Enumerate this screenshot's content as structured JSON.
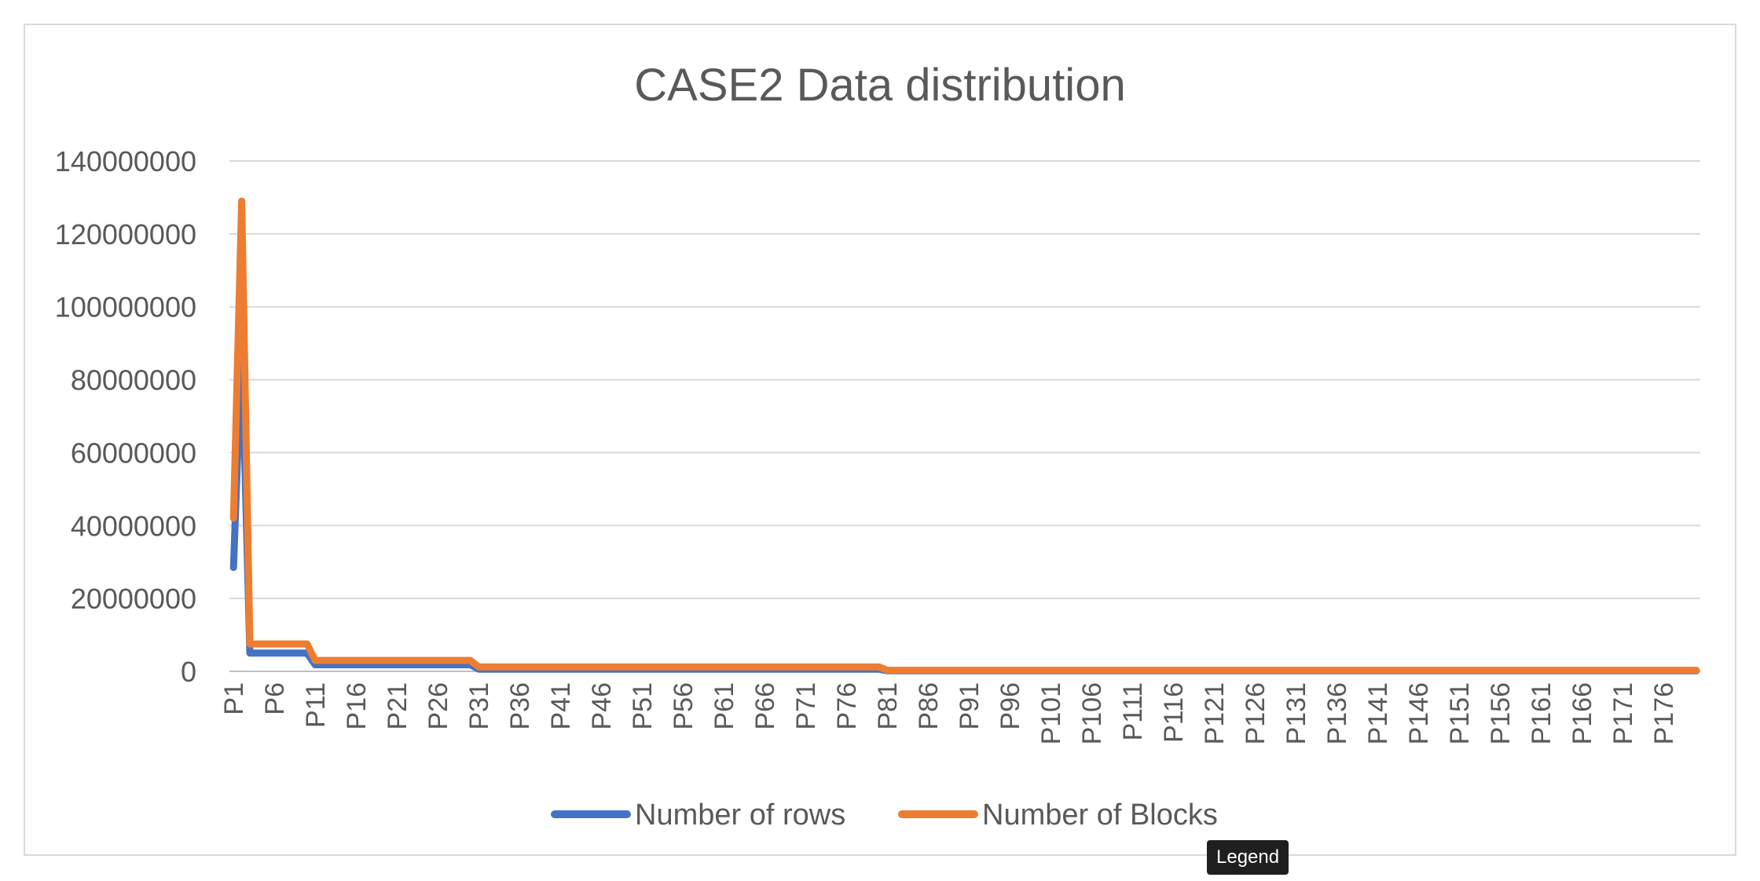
{
  "chart_data": {
    "type": "line",
    "title": "CASE2 Data distribution",
    "xlabel": "",
    "ylabel": "",
    "ylim": [
      0,
      140000000
    ],
    "y_ticks": [
      0,
      20000000,
      40000000,
      60000000,
      80000000,
      100000000,
      120000000,
      140000000
    ],
    "x_count": 180,
    "x_prefix": "P",
    "x_tick_labels": [
      "P1",
      "P6",
      "P11",
      "P16",
      "P21",
      "P26",
      "P31",
      "P36",
      "P41",
      "P46",
      "P51",
      "P56",
      "P61",
      "P66",
      "P71",
      "P76",
      "P81",
      "P86",
      "P91",
      "P96",
      "P101",
      "P106",
      "P111",
      "P116",
      "P121",
      "P126",
      "P131",
      "P136",
      "P141",
      "P146",
      "P151",
      "P156",
      "P161",
      "P166",
      "P171",
      "P176"
    ],
    "grid": true,
    "legend_position": "bottom",
    "series": [
      {
        "name": "Number of rows",
        "color": "#4472C4",
        "segments": [
          {
            "from": 1,
            "to": 1,
            "value": 28500000
          },
          {
            "from": 2,
            "to": 2,
            "value": 90000000
          },
          {
            "from": 3,
            "to": 10,
            "value": 5000000
          },
          {
            "from": 11,
            "to": 30,
            "value": 1800000
          },
          {
            "from": 31,
            "to": 80,
            "value": 600000
          },
          {
            "from": 81,
            "to": 180,
            "value": 150000
          }
        ]
      },
      {
        "name": "Number of Blocks",
        "color": "#ED7D31",
        "segments": [
          {
            "from": 1,
            "to": 1,
            "value": 42000000
          },
          {
            "from": 2,
            "to": 2,
            "value": 129000000
          },
          {
            "from": 3,
            "to": 10,
            "value": 7500000
          },
          {
            "from": 11,
            "to": 30,
            "value": 3000000
          },
          {
            "from": 31,
            "to": 80,
            "value": 1200000
          },
          {
            "from": 81,
            "to": 180,
            "value": 300000
          }
        ]
      }
    ]
  },
  "tooltip": {
    "text": "Legend"
  }
}
